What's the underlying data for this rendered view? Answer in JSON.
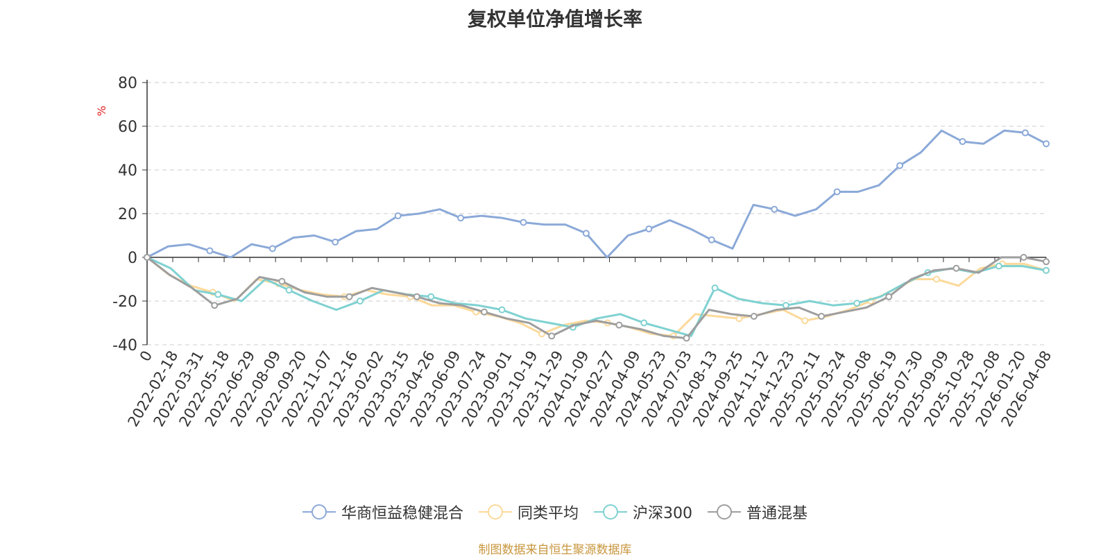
{
  "chart_data": {
    "type": "line",
    "title": "复权单位净值增长率",
    "ylabel": "%",
    "ylim": [
      -40,
      80
    ],
    "yticks": [
      -40,
      -20,
      0,
      20,
      40,
      60,
      80
    ],
    "grid": true,
    "legend_position": "bottom",
    "x_tick_labels": [
      "0",
      "2022-02-18",
      "2022-03-31",
      "2022-05-18",
      "2022-06-29",
      "2022-08-09",
      "2022-09-20",
      "2022-11-07",
      "2022-12-16",
      "2023-02-02",
      "2023-03-15",
      "2023-04-26",
      "2023-06-09",
      "2023-07-24",
      "2023-09-01",
      "2023-10-19",
      "2023-11-29",
      "2024-01-09",
      "2024-02-27",
      "2024-04-09",
      "2024-05-23",
      "2024-07-03",
      "2024-08-13",
      "2024-09-25",
      "2024-11-12",
      "2024-12-23",
      "2025-02-11",
      "2025-03-24",
      "2025-05-08",
      "2025-06-19",
      "2025-07-30",
      "2025-09-09",
      "2025-10-28",
      "2025-12-08",
      "2026-01-20",
      "2026-04-08"
    ],
    "series": [
      {
        "name": "华商恒益稳健混合",
        "color": "#8ba9d8",
        "values": [
          0,
          5,
          6,
          3,
          0,
          6,
          4,
          9,
          10,
          7,
          12,
          13,
          19,
          20,
          22,
          18,
          19,
          18,
          16,
          15,
          15,
          11,
          0,
          10,
          13,
          17,
          13,
          8,
          4,
          24,
          22,
          19,
          22,
          30,
          30,
          33,
          42,
          48,
          58,
          53,
          52,
          58,
          57,
          52
        ]
      },
      {
        "name": "同类平均",
        "color": "#fcd99a",
        "values": [
          0,
          -8,
          -13,
          -16,
          -20,
          -10,
          -12,
          -15,
          -17,
          -18,
          -15,
          -17,
          -18,
          -22,
          -22,
          -25,
          -27,
          -30,
          -35,
          -31,
          -29,
          -30,
          -32,
          -35,
          -36,
          -26,
          -27,
          -28,
          -26,
          -24,
          -29,
          -27,
          -24,
          -20,
          -15,
          -10,
          -10,
          -13,
          -5,
          -3,
          -3,
          -6
        ]
      },
      {
        "name": "沪深300",
        "color": "#7fd1d1",
        "values": [
          0,
          -5,
          -15,
          -17,
          -20,
          -10,
          -15,
          -20,
          -24,
          -20,
          -15,
          -17,
          -18,
          -21,
          -22,
          -24,
          -28,
          -30,
          -32,
          -28,
          -26,
          -30,
          -33,
          -36,
          -14,
          -19,
          -21,
          -22,
          -20,
          -22,
          -21,
          -18,
          -12,
          -7,
          -5,
          -7,
          -4,
          -4,
          -6
        ]
      },
      {
        "name": "普通混基",
        "color": "#9e9e9e",
        "values": [
          0,
          -8,
          -14,
          -22,
          -19,
          -9,
          -11,
          -16,
          -18,
          -18,
          -14,
          -16,
          -18,
          -21,
          -22,
          -25,
          -28,
          -30,
          -36,
          -31,
          -29,
          -31,
          -33,
          -36,
          -37,
          -24,
          -26,
          -27,
          -24,
          -23,
          -27,
          -25,
          -23,
          -18,
          -10,
          -6,
          -5,
          -7,
          0,
          0,
          -2
        ]
      }
    ]
  },
  "source_note": "制图数据来自恒生聚源数据库"
}
